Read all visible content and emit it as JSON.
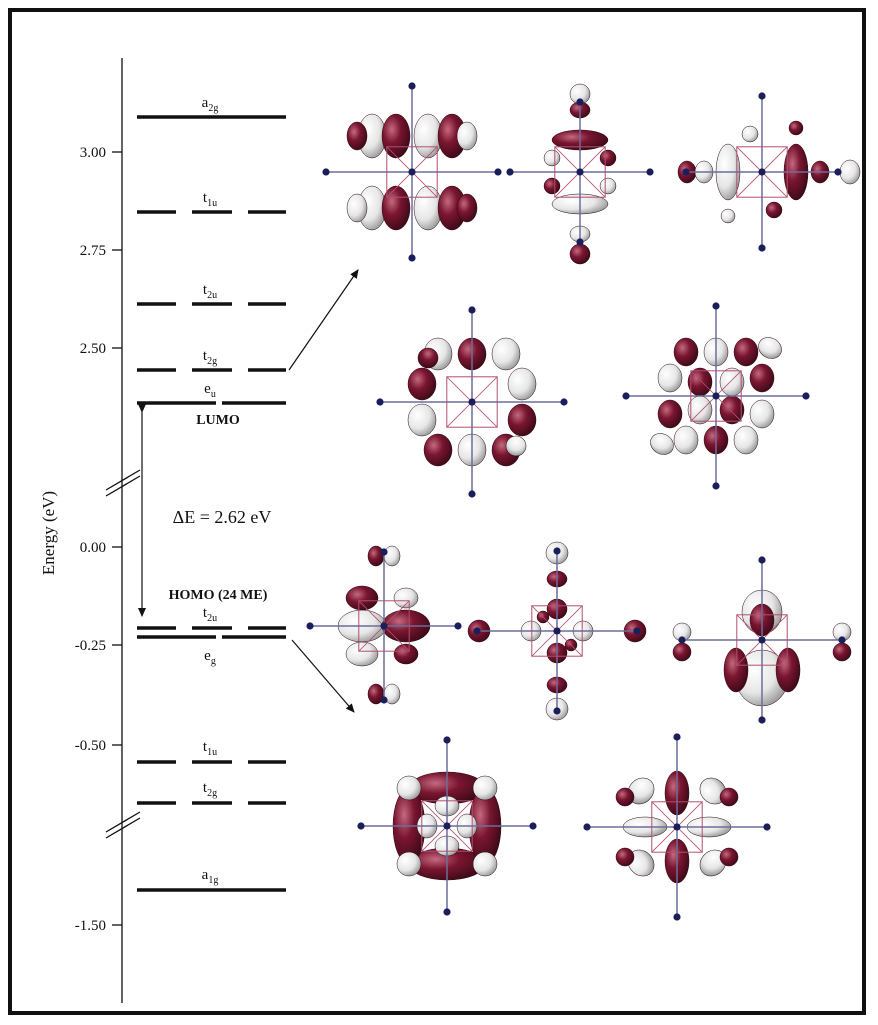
{
  "axis": {
    "label": "Energy  (eV)",
    "ticks": [
      {
        "label": "3.00"
      },
      {
        "label": "2.75"
      },
      {
        "label": "2.50"
      },
      {
        "label": "0.00"
      },
      {
        "label": "-0.25"
      },
      {
        "label": "-0.50"
      },
      {
        "label": "-1.50"
      }
    ]
  },
  "levels": [
    {
      "main": "a",
      "sub": "2g",
      "style": "solid"
    },
    {
      "main": "t",
      "sub": "1u",
      "style": "dashed"
    },
    {
      "main": "t",
      "sub": "2u",
      "style": "dashed"
    },
    {
      "main": "t",
      "sub": "2g",
      "style": "dashed"
    },
    {
      "main": "e",
      "sub": "u",
      "style": "split2"
    },
    {
      "main": "t",
      "sub": "2u",
      "style": "dashed"
    },
    {
      "main": "e",
      "sub": "g",
      "style": "split2"
    },
    {
      "main": "t",
      "sub": "1u",
      "style": "dashed"
    },
    {
      "main": "t",
      "sub": "2g",
      "style": "dashed"
    },
    {
      "main": "a",
      "sub": "1g",
      "style": "solid"
    }
  ],
  "labels": {
    "lumo": "LUMO",
    "homo": "HOMO (24 ME)",
    "gap": "ΔE = 2.62 eV"
  },
  "colors": {
    "lobe_dark": "#7a1530",
    "lobe_light": "#f2f2f2",
    "atom": "#1a1f5a",
    "line": "#111111"
  }
}
